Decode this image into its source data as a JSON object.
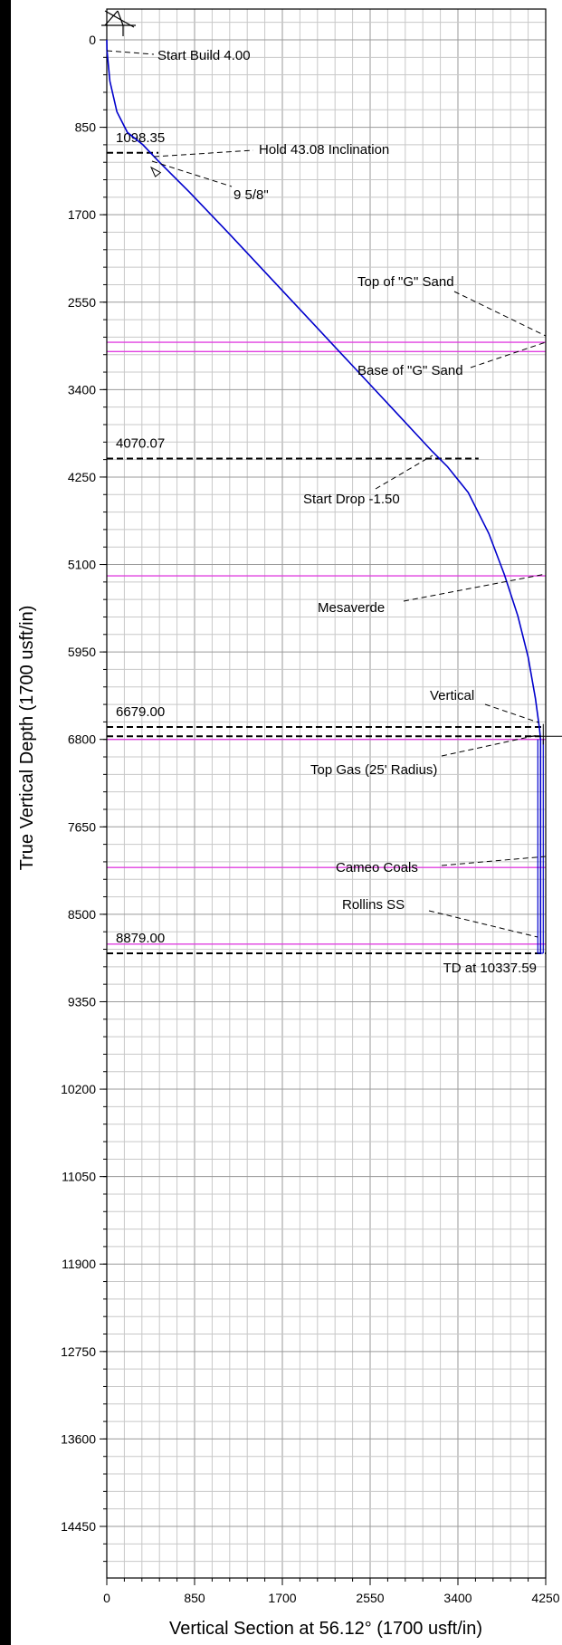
{
  "chart_data": {
    "type": "line",
    "xlabel": "Vertical Section at 56.12° (1700 usft/in)",
    "ylabel": "True Vertical Depth (1700 usft/in)",
    "xlim": [
      0,
      4250
    ],
    "ylim": [
      0,
      15300
    ],
    "x_ticks": [
      0,
      850,
      1700,
      2550,
      3400,
      4250
    ],
    "y_ticks": [
      0,
      850,
      1700,
      2550,
      3400,
      4250,
      5100,
      5950,
      6800,
      7650,
      8500,
      9350,
      10200,
      11050,
      11900,
      12750,
      13600,
      14450
    ],
    "grid": true,
    "wellpath": {
      "color": "#0000cc",
      "x": [
        0,
        2,
        30,
        98,
        200,
        350,
        500,
        800,
        1200,
        1600,
        2000,
        2400,
        2800,
        3150,
        3300,
        3500,
        3700,
        3850,
        3980,
        4080,
        4150,
        4190,
        4200,
        4200
      ],
      "y": [
        0,
        100,
        400,
        700,
        900,
        1020,
        1180,
        1480,
        1900,
        2330,
        2760,
        3190,
        3620,
        4000,
        4150,
        4400,
        4800,
        5200,
        5600,
        6000,
        6400,
        6700,
        6800,
        8879
      ]
    },
    "formations": {
      "color": "#e040e0",
      "items": [
        {
          "name": "Top of \"G\" Sand",
          "tvd": 2940
        },
        {
          "name": "Base of \"G\" Sand",
          "tvd": 3030
        },
        {
          "name": "Mesaverde",
          "tvd": 5210
        },
        {
          "name": "Top Gas (25' Radius)",
          "tvd": 6800
        },
        {
          "name": "Cameo Coals",
          "tvd": 8045
        },
        {
          "name": "Rollins SS",
          "tvd": 8790
        }
      ]
    },
    "marker_lines": [
      {
        "label": "1098.35",
        "tvd": 1098.35
      },
      {
        "label": "4070.07",
        "tvd": 4070.07
      },
      {
        "label": "6679.00",
        "tvd": 6679
      },
      {
        "label": "",
        "tvd": 6770
      },
      {
        "label": "8879.00",
        "tvd": 8879
      }
    ],
    "annotations": [
      {
        "text": "Start Build 4.00"
      },
      {
        "text": "Hold 43.08 Inclination"
      },
      {
        "text": "9 5/8\""
      },
      {
        "text": "Top of \"G\" Sand"
      },
      {
        "text": "Base of \"G\" Sand"
      },
      {
        "text": "Start Drop -1.50"
      },
      {
        "text": "Mesaverde"
      },
      {
        "text": "Vertical"
      },
      {
        "text": "Top Gas (25' Radius)"
      },
      {
        "text": "Cameo Coals"
      },
      {
        "text": "Rollins SS"
      },
      {
        "text": "TD at 10337.59"
      }
    ]
  }
}
